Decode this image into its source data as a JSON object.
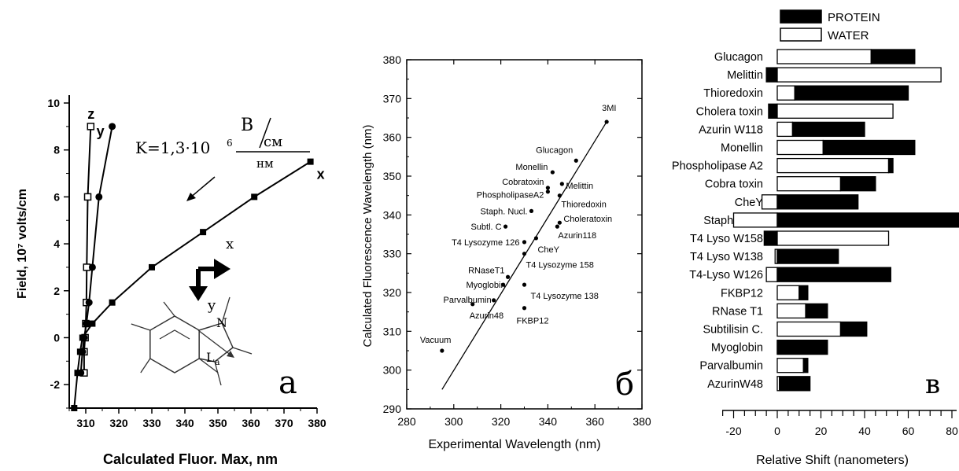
{
  "chart_data": [
    {
      "panel": "a",
      "type": "line",
      "xlabel": "Calculated Fluor. Max, nm",
      "ylabel": "Field, 10⁷ volts/cm",
      "xlim": [
        305,
        380
      ],
      "ylim": [
        -3,
        10
      ],
      "xticks": [
        310,
        320,
        330,
        340,
        350,
        360,
        370,
        380
      ],
      "yticks": [
        -2,
        0,
        2,
        4,
        6,
        8,
        10
      ],
      "panel_label": "a",
      "annotation_formula": {
        "prefix": "K=1,3·10",
        "exp": "6",
        "numerator": "В",
        "denominator": "см",
        "denominator2": "нм"
      },
      "axis_labels_inset": {
        "x": "x",
        "y": "y"
      },
      "molecule_labels": {
        "nitrogen": "N",
        "band": "L",
        "band_sub": "a"
      },
      "series": [
        {
          "name": "z",
          "marker": "open-square",
          "points": [
            [
              309.5,
              -1.5
            ],
            [
              309.5,
              -0.6
            ],
            [
              309.8,
              0
            ],
            [
              310,
              0.6
            ],
            [
              310.2,
              1.5
            ],
            [
              310.3,
              3
            ],
            [
              310.6,
              6
            ],
            [
              311.5,
              9
            ]
          ]
        },
        {
          "name": "y",
          "marker": "filled-circle",
          "points": [
            [
              308.5,
              -1.5
            ],
            [
              309,
              -0.6
            ],
            [
              309.5,
              0
            ],
            [
              310.2,
              0.6
            ],
            [
              311,
              1.5
            ],
            [
              312,
              3
            ],
            [
              314,
              6
            ],
            [
              318,
              9
            ]
          ]
        },
        {
          "name": "x",
          "marker": "filled-square",
          "points": [
            [
              306.5,
              -3
            ],
            [
              307.5,
              -1.5
            ],
            [
              308.3,
              -0.6
            ],
            [
              309,
              0
            ],
            [
              312,
              0.6
            ],
            [
              318,
              1.5
            ],
            [
              330,
              3
            ],
            [
              345.5,
              4.5
            ],
            [
              361,
              6
            ],
            [
              378,
              7.5
            ]
          ]
        }
      ]
    },
    {
      "panel": "б",
      "type": "scatter",
      "xlabel": "Experimental Wavelength (nm)",
      "ylabel": "Calculated Fluorescence Wavelength (nm)",
      "xlim": [
        280,
        380
      ],
      "ylim": [
        290,
        380
      ],
      "xticks": [
        280,
        300,
        320,
        340,
        360,
        380
      ],
      "yticks": [
        290,
        300,
        310,
        320,
        330,
        340,
        350,
        360,
        370,
        380
      ],
      "panel_label": "б",
      "fit_line": [
        [
          295,
          295
        ],
        [
          365,
          364
        ]
      ],
      "points": [
        {
          "label": "3MI",
          "x": 365,
          "y": 364
        },
        {
          "label": "Glucagon",
          "x": 352,
          "y": 354
        },
        {
          "label": "Monellin",
          "x": 342,
          "y": 351
        },
        {
          "label": "Melittin",
          "x": 346,
          "y": 348
        },
        {
          "label": "Cobratoxin",
          "x": 340,
          "y": 347
        },
        {
          "label": "PhospholipaseA2",
          "x": 340,
          "y": 346
        },
        {
          "label": "Thioredoxin",
          "x": 345,
          "y": 345
        },
        {
          "label": "Staph. Nucl.",
          "x": 333,
          "y": 341
        },
        {
          "label": "Choleratoxin",
          "x": 345,
          "y": 338
        },
        {
          "label": "Subtl. C",
          "x": 322,
          "y": 337
        },
        {
          "label": "Azurin118",
          "x": 344,
          "y": 337
        },
        {
          "label": "T4 Lysozyme 126",
          "x": 330,
          "y": 333
        },
        {
          "label": "CheY",
          "x": 335,
          "y": 334
        },
        {
          "label": "T4 Lysozyme 158",
          "x": 330,
          "y": 330
        },
        {
          "label": "RNaseT1",
          "x": 323,
          "y": 324
        },
        {
          "label": "Myoglobin",
          "x": 321,
          "y": 322
        },
        {
          "label": "T4 Lysozyme 138",
          "x": 330,
          "y": 322
        },
        {
          "label": "Parvalbumin",
          "x": 317,
          "y": 318
        },
        {
          "label": "Azurin48",
          "x": 308,
          "y": 317
        },
        {
          "label": "FKBP12",
          "x": 330,
          "y": 316
        },
        {
          "label": "Vacuum",
          "x": 295,
          "y": 305
        }
      ]
    },
    {
      "panel": "в",
      "type": "bar",
      "orientation": "horizontal",
      "xlabel": "Relative Shift (nanometers)",
      "xlim": [
        -10,
        90
      ],
      "xticks": [
        -20,
        0,
        20,
        40,
        60,
        80
      ],
      "panel_label": "в",
      "legend": [
        {
          "name": "PROTEIN",
          "color": "#000000"
        },
        {
          "name": "WATER",
          "color": "#ffffff"
        }
      ],
      "rows": [
        {
          "label": "Glucagon",
          "water": 43,
          "protein": 20
        },
        {
          "label": "Melittin",
          "protein": -5,
          "water": 75
        },
        {
          "label": "Thioredoxin",
          "water": 8,
          "protein": 52
        },
        {
          "label": "Cholera toxin",
          "protein": -4,
          "water": 53
        },
        {
          "label": "Azurin W118",
          "water": 7,
          "protein": 33
        },
        {
          "label": "Monellin",
          "water": 21,
          "protein": 42
        },
        {
          "label": "Phospholipase A2",
          "water": 51,
          "protein": 2
        },
        {
          "label": "Cobra toxin",
          "water": 29,
          "protein": 16
        },
        {
          "label": "CheY",
          "water": -7,
          "protein": 37
        },
        {
          "label": "Staph. Nuc.",
          "water": -20,
          "protein": 85
        },
        {
          "label": "T4 Lyso W158",
          "protein": -6,
          "water": 51
        },
        {
          "label": "T4 Lyso W138",
          "water": -1,
          "protein": 28
        },
        {
          "label": "T4-Lyso W126",
          "water": -5,
          "protein": 52
        },
        {
          "label": "FKBP12",
          "water": 10,
          "protein": 4
        },
        {
          "label": "RNase T1",
          "water": 13,
          "protein": 10
        },
        {
          "label": "Subtilisin C.",
          "water": 29,
          "protein": 12
        },
        {
          "label": "Myoglobin",
          "water": 0,
          "protein": 23
        },
        {
          "label": "Parvalbumin",
          "water": 12,
          "protein": 2
        },
        {
          "label": "AzurinW48",
          "water": 1,
          "protein": 14
        }
      ]
    }
  ]
}
